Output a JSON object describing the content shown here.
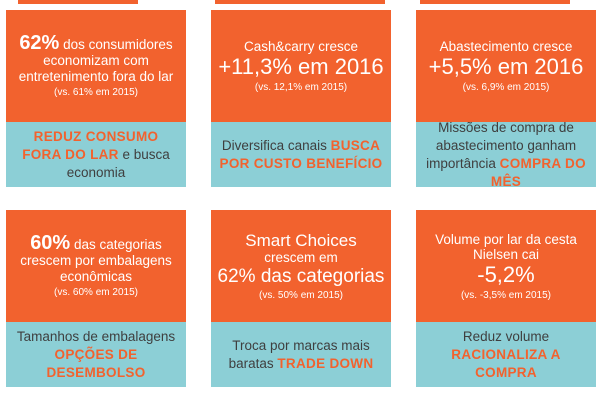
{
  "cards": [
    {
      "head_pct": "62%",
      "head_rest": "dos consumidores economizam com entretenimento fora do lar",
      "note": "(vs. 61% em 2015)",
      "foot_hl": "REDUZ CONSUMO FORA DO LAR",
      "foot_rest": "e busca economia"
    },
    {
      "head_title": "Cash&carry cresce",
      "head_big": "+11,3% em 2016",
      "note": "(vs. 12,1% em 2015)",
      "foot_text": "Diversifica canais",
      "foot_hl": "BUSCA POR CUSTO BENEFÍCIO"
    },
    {
      "head_title": "Abastecimento cresce",
      "head_big": "+5,5% em 2016",
      "note": "(vs. 6,9% em 2015)",
      "foot_text": "Missões de compra de abastecimento ganham importância",
      "foot_hl": "COMPRA DO MÊS"
    },
    {
      "head_pct": "60%",
      "head_rest": "das categorias crescem por embalagens econômicas",
      "note": "(vs. 60% em 2015)",
      "foot_text": "Tamanhos de embalagens",
      "foot_hl": "OPÇÕES DE DESEMBOLSO"
    },
    {
      "head_title": "Smart Choices",
      "head_mid": "crescem em",
      "head_big": "62% das categorias",
      "note": "(vs. 50% em 2015)",
      "foot_text": "Troca por marcas mais baratas",
      "foot_hl": "TRADE DOWN"
    },
    {
      "head_title": "Volume por lar da cesta Nielsen cai",
      "head_big": "-5,2%",
      "note": "(vs. -3,5% em 2015)",
      "foot_text": "Reduz volume",
      "foot_hl": "RACIONALIZA A COMPRA"
    }
  ],
  "colors": {
    "orange": "#f2622e",
    "teal": "#8ccfd6",
    "text_dark": "#3f3f3f"
  }
}
